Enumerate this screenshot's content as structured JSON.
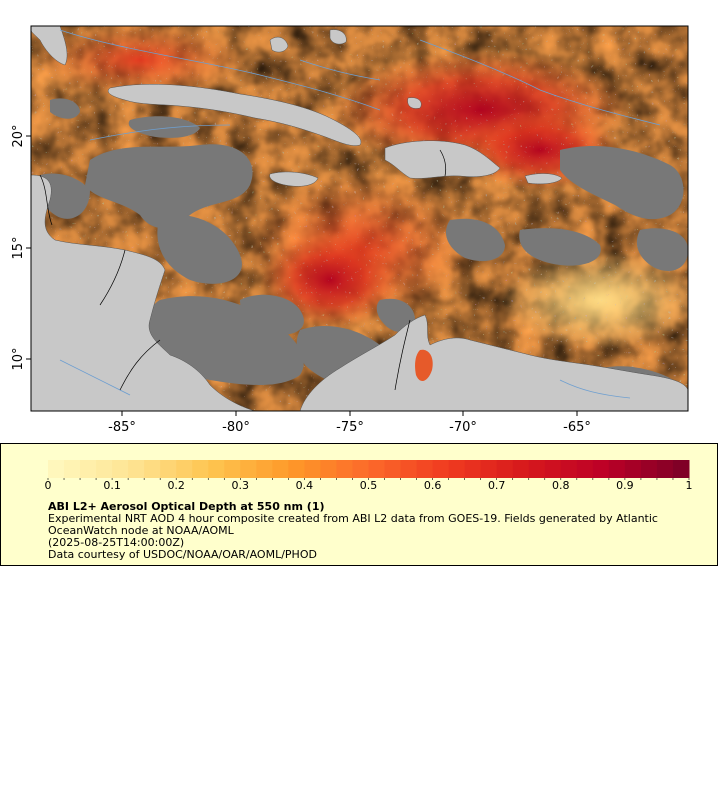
{
  "map": {
    "lat_ticks": [
      "10°",
      "15°",
      "20°"
    ],
    "lon_ticks": [
      "-85°",
      "-80°",
      "-75°",
      "-70°",
      "-65°"
    ],
    "colors": {
      "land": "#c8c8c8",
      "no_data": "#787878",
      "river": "#6e9fd0",
      "border": "#000000"
    }
  },
  "legend": {
    "ticks": [
      "0",
      "0.1",
      "0.2",
      "0.3",
      "0.4",
      "0.5",
      "0.6",
      "0.7",
      "0.8",
      "0.9",
      "1"
    ],
    "colorscale": [
      "#fff7bc",
      "#fee391",
      "#fec44f",
      "#fe9929",
      "#fc6a2a",
      "#f03b20",
      "#d7191c",
      "#bd0026",
      "#800026"
    ],
    "title": "ABI L2+ Aerosol Optical Depth at 550 nm (1)",
    "description": "Experimental NRT AOD 4 hour composite created from ABI L2 data from GOES-19. Fields generated by Atlantic OceanWatch node at NOAA/AOML",
    "timestamp": "(2025-08-25T14:00:00Z)",
    "credit": "Data courtesy of USDOC/NOAA/OAR/AOML/PHOD"
  }
}
